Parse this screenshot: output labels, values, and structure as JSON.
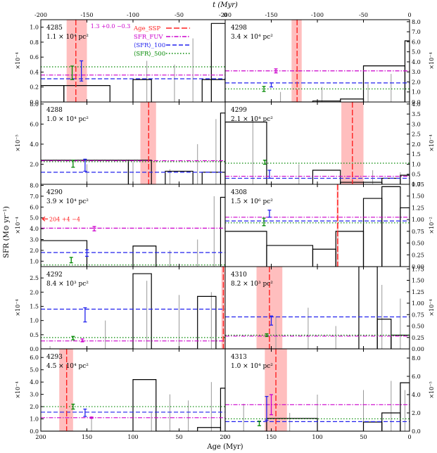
{
  "figure": {
    "top_axis_label": "t (Myr)",
    "bottom_axis_label": "Age (Myr)",
    "y_axis_label": "SFR (M⊙ yr⁻¹)",
    "top_ticks": [
      -200,
      -150,
      -100,
      -50,
      0
    ],
    "bottom_ticks": [
      200,
      150,
      100,
      50,
      0
    ],
    "colors": {
      "step": "#000000",
      "ssp": "#ff2222",
      "ssp_band": "#ffb3b3",
      "fuv": "#cc00cc",
      "sfr100": "#2222ee",
      "sfr500": "#008800",
      "hist_bars": "#999999"
    }
  },
  "legend": {
    "placement": "top of panel 4285",
    "items": [
      {
        "key": "ssp",
        "label": "Age_SSP",
        "style": "dashed-red"
      },
      {
        "key": "fuv",
        "label": "SFR_FUV",
        "style": "dashdot-magenta"
      },
      {
        "key": "sfr100",
        "label": "⟨SFR⟩_100",
        "style": "dashed-blue"
      },
      {
        "key": "sfr500",
        "label": "⟨SFR⟩_500",
        "style": "dotted-green"
      }
    ]
  },
  "chart_data": [
    {
      "type": "line",
      "id": "4285",
      "col": 0,
      "row": 0,
      "name": "4285",
      "area": "1.1 × 10⁴ pc²",
      "multiplier": "×10⁻⁴",
      "ylim": [
        0,
        1.1
      ],
      "ticks": [
        0.0,
        0.2,
        0.4,
        0.6,
        0.8,
        1.0
      ],
      "tick_labels": [
        "0.0",
        "0.2",
        "0.4",
        "0.6",
        "0.8",
        "1.0"
      ],
      "steps": [
        [
          200,
          175,
          0.22
        ],
        [
          175,
          125,
          0.22
        ],
        [
          100,
          80,
          0.3
        ],
        [
          25,
          0,
          0.3
        ],
        [
          15,
          0,
          1.05
        ]
      ],
      "bars": [
        [
          15,
          0.8
        ],
        [
          35,
          0.85
        ],
        [
          55,
          0.5
        ],
        [
          85,
          0.55
        ]
      ],
      "ssp": {
        "age": 162,
        "lo": 150,
        "hi": 172
      },
      "fuv": 0.36,
      "sfr100": 0.31,
      "sfr500": 0.47,
      "errs": [
        {
          "x": 156,
          "y": 0.4,
          "lo": 0.28,
          "hi": 0.55,
          "c": "sfr100"
        },
        {
          "x": 166,
          "y": 0.38,
          "lo": 0.3,
          "hi": 0.48,
          "c": "sfr500"
        }
      ],
      "annot": "1.3 +0.0 −0.3"
    },
    {
      "type": "line",
      "id": "4298",
      "col": 1,
      "row": 0,
      "name": "4298",
      "area": "3.4 × 10⁴ pc²",
      "multiplier": "×10⁻⁴",
      "ylim": [
        0,
        8.2
      ],
      "ticks": [
        0.0,
        1.0,
        2.0,
        3.0,
        4.0,
        5.0,
        6.0,
        7.0,
        8.0
      ],
      "tick_labels": [
        "0.0",
        "1.0",
        "2.0",
        "3.0",
        "4.0",
        "5.0",
        "6.0",
        "7.0",
        "8.0"
      ],
      "steps": [
        [
          200,
          105,
          0.0
        ],
        [
          105,
          75,
          0.1
        ],
        [
          75,
          50,
          0.3
        ],
        [
          50,
          5,
          3.6
        ],
        [
          5,
          0,
          6.1
        ]
      ],
      "bars": [
        [
          20,
          2.8
        ],
        [
          45,
          1.8
        ],
        [
          95,
          1.5
        ],
        [
          140,
          1.0
        ]
      ],
      "ssp": {
        "age": 122,
        "lo": 117,
        "hi": 128
      },
      "fuv": 3.1,
      "sfr100": 1.9,
      "sfr500": 1.3,
      "errs": [
        {
          "x": 145,
          "y": 3.1,
          "lo": 2.9,
          "hi": 3.3,
          "c": "fuv"
        },
        {
          "x": 150,
          "y": 1.7,
          "lo": 1.5,
          "hi": 1.9,
          "c": "sfr100"
        },
        {
          "x": 158,
          "y": 1.3,
          "lo": 1.05,
          "hi": 1.55,
          "c": "sfr500"
        }
      ]
    },
    {
      "type": "line",
      "id": "4288",
      "col": 0,
      "row": 1,
      "name": "4288",
      "area": "1.0 × 10⁴ pc²",
      "multiplier": "×10⁻⁵",
      "ylim": [
        0,
        8.2
      ],
      "ticks": [
        2.0,
        4.0,
        6.0,
        8.0
      ],
      "tick_labels": [
        "2.0",
        "4.0",
        "6.0",
        "8.0"
      ],
      "steps": [
        [
          200,
          105,
          2.4
        ],
        [
          105,
          80,
          2.4
        ],
        [
          65,
          35,
          1.3
        ],
        [
          25,
          0,
          1.2
        ],
        [
          5,
          0,
          7.1
        ]
      ],
      "bars": [
        [
          10,
          6.5
        ],
        [
          30,
          4.0
        ],
        [
          60,
          1.5
        ],
        [
          100,
          2.2
        ],
        [
          150,
          2.0
        ]
      ],
      "ssp": {
        "age": 83,
        "lo": 75,
        "hi": 92
      },
      "fuv": 2.35,
      "sfr100": 1.2,
      "sfr500": 2.25,
      "errs": [
        {
          "x": 152,
          "y": 1.8,
          "lo": 1.3,
          "hi": 2.5,
          "c": "sfr100"
        },
        {
          "x": 165,
          "y": 2.05,
          "lo": 1.7,
          "hi": 2.4,
          "c": "sfr500"
        }
      ]
    },
    {
      "type": "line",
      "id": "4299",
      "col": 1,
      "row": 1,
      "name": "4299",
      "area": "2.1 × 10⁴ pc²",
      "multiplier": "×10⁻⁴",
      "ylim": [
        0,
        4.1
      ],
      "ticks": [
        0.0,
        0.5,
        1.0,
        1.5,
        2.0,
        2.5,
        3.0,
        3.5,
        4.0
      ],
      "tick_labels": [
        "0.0",
        "0.5",
        "1.0",
        "1.5",
        "2.0",
        "2.5",
        "3.0",
        "3.5",
        "4.0"
      ],
      "steps": [
        [
          200,
          155,
          3.1
        ],
        [
          155,
          105,
          0.0
        ],
        [
          105,
          75,
          0.7
        ],
        [
          75,
          30,
          0.1
        ],
        [
          30,
          10,
          0.3
        ],
        [
          10,
          0,
          0.45
        ]
      ],
      "bars": [
        [
          10,
          0.6
        ],
        [
          40,
          0.7
        ],
        [
          120,
          1.0
        ],
        [
          170,
          3.3
        ]
      ],
      "ssp": {
        "age": 62,
        "lo": 50,
        "hi": 74
      },
      "fuv": 0.4,
      "sfr100": 0.3,
      "sfr500": 1.05,
      "errs": [
        {
          "x": 152,
          "y": 0.5,
          "lo": 0.3,
          "hi": 0.7,
          "c": "sfr100"
        },
        {
          "x": 157,
          "y": 1.1,
          "lo": 1.0,
          "hi": 1.2,
          "c": "sfr500"
        }
      ]
    },
    {
      "type": "line",
      "id": "4290",
      "col": 0,
      "row": 2,
      "name": "4290",
      "area": "3.9 × 10⁴ pc²",
      "multiplier": "×10⁻⁴",
      "ylim": [
        0.5,
        8.1
      ],
      "ticks": [
        1.0,
        2.0,
        3.0,
        4.0,
        5.0,
        6.0,
        7.0,
        8.0
      ],
      "tick_labels": [
        "1.0",
        "2.0",
        "3.0",
        "4.0",
        "5.0",
        "6.0",
        "7.0",
        "8.0"
      ],
      "steps": [
        [
          200,
          150,
          2.9
        ],
        [
          100,
          75,
          2.4
        ],
        [
          5,
          0,
          6.9
        ]
      ],
      "bars": [
        [
          12,
          7.0
        ],
        [
          30,
          3.0
        ],
        [
          60,
          2.0
        ],
        [
          100,
          2.2
        ]
      ],
      "ssp": null,
      "fuv": 4.05,
      "sfr100": 1.8,
      "sfr500": 0.65,
      "errs": [
        {
          "x": 150,
          "y": 1.75,
          "lo": 1.45,
          "hi": 2.05,
          "c": "sfr100"
        },
        {
          "x": 142,
          "y": 4.0,
          "lo": 3.8,
          "hi": 4.2,
          "c": "fuv"
        },
        {
          "x": 167,
          "y": 1.1,
          "lo": 0.85,
          "hi": 1.35,
          "c": "sfr500"
        }
      ],
      "annot": "204 +4 −4"
    },
    {
      "type": "line",
      "id": "4308",
      "col": 1,
      "row": 2,
      "name": "4308",
      "area": "1.5 × 10⁶ pc²",
      "multiplier": "×10⁻²",
      "ylim": [
        0,
        1.75
      ],
      "ticks": [
        0.0,
        0.25,
        0.5,
        0.75,
        1.0,
        1.25,
        1.5,
        1.75
      ],
      "tick_labels": [
        "0.00",
        "0.25",
        "0.50",
        "0.75",
        "1.00",
        "1.25",
        "1.50",
        "1.75"
      ],
      "steps": [
        [
          200,
          155,
          0.75
        ],
        [
          155,
          105,
          0.45
        ],
        [
          105,
          80,
          0.37
        ],
        [
          80,
          50,
          0.75
        ],
        [
          50,
          30,
          1.45
        ],
        [
          30,
          10,
          1.7
        ],
        [
          10,
          0,
          1.25
        ]
      ],
      "bars": [],
      "ssp": {
        "age": 78,
        "lo": 77,
        "hi": 79
      },
      "fuv": 1.05,
      "sfr100": 0.97,
      "sfr500": 0.93,
      "errs": [
        {
          "x": 152,
          "y": 1.12,
          "lo": 1.05,
          "hi": 1.2,
          "c": "sfr100"
        },
        {
          "x": 158,
          "y": 0.95,
          "lo": 0.87,
          "hi": 1.03,
          "c": "sfr500"
        }
      ]
    },
    {
      "type": "line",
      "id": "4292",
      "col": 0,
      "row": 3,
      "name": "4292",
      "area": "8.4 × 10³ pc²",
      "multiplier": "×10⁻⁴",
      "ylim": [
        0,
        2.9
      ],
      "ticks": [
        0.0,
        0.5,
        1.0,
        1.5,
        2.0,
        2.5
      ],
      "tick_labels": [
        "0.0",
        "0.5",
        "1.0",
        "1.5",
        "2.0",
        "2.5"
      ],
      "steps": [
        [
          200,
          100,
          0.0
        ],
        [
          100,
          80,
          2.65
        ],
        [
          80,
          30,
          0.0
        ],
        [
          30,
          10,
          1.85
        ],
        [
          10,
          0,
          0.0
        ]
      ],
      "bars": [
        [
          15,
          2.0
        ],
        [
          50,
          1.9
        ],
        [
          85,
          2.4
        ],
        [
          130,
          1.0
        ],
        [
          190,
          0.1
        ]
      ],
      "ssp": {
        "age": 2,
        "lo": 0,
        "hi": 4
      },
      "fuv": 0.28,
      "sfr100": 1.4,
      "sfr500": 0.4,
      "errs": [
        {
          "x": 152,
          "y": 1.2,
          "lo": 0.95,
          "hi": 1.45,
          "c": "sfr100"
        },
        {
          "x": 155,
          "y": 0.3,
          "lo": 0.25,
          "hi": 0.35,
          "c": "fuv"
        },
        {
          "x": 165,
          "y": 0.38,
          "lo": 0.32,
          "hi": 0.44,
          "c": "sfr500"
        }
      ]
    },
    {
      "type": "line",
      "id": "4310",
      "col": 1,
      "row": 3,
      "name": "4310",
      "area": "8.2 × 10³ pc²",
      "multiplier": "×10⁻⁴",
      "ylim": [
        0,
        1.8
      ],
      "ticks": [
        0.0,
        0.25,
        0.5,
        0.75,
        1.0,
        1.25,
        1.5,
        1.75
      ],
      "tick_labels": [
        "0.00",
        "0.25",
        "0.50",
        "0.75",
        "1.00",
        "1.25",
        "1.50",
        "1.75"
      ],
      "steps": [
        [
          200,
          55,
          0.0
        ],
        [
          55,
          35,
          1.8
        ],
        [
          35,
          20,
          0.65
        ],
        [
          20,
          0,
          0.3
        ]
      ],
      "bars": [
        [
          10,
          1.1
        ],
        [
          30,
          1.4
        ],
        [
          80,
          0.5
        ],
        [
          110,
          0.9
        ],
        [
          145,
          0.7
        ]
      ],
      "ssp": {
        "age": 152,
        "lo": 138,
        "hi": 166
      },
      "fuv": 0.28,
      "sfr100": 0.7,
      "sfr500": 0.3,
      "errs": [
        {
          "x": 150,
          "y": 0.6,
          "lo": 0.52,
          "hi": 0.72,
          "c": "sfr100"
        },
        {
          "x": 155,
          "y": 0.3,
          "lo": 0.27,
          "hi": 0.33,
          "c": "sfr500"
        }
      ]
    },
    {
      "type": "line",
      "id": "4293",
      "col": 0,
      "row": 4,
      "name": "4293",
      "area": "4.5 × 10⁴ pc²",
      "multiplier": "×10⁻⁴",
      "ylim": [
        0,
        6.7
      ],
      "ticks": [
        0.0,
        1.0,
        2.0,
        3.0,
        4.0,
        5.0,
        6.0
      ],
      "tick_labels": [
        "0.0",
        "1.0",
        "2.0",
        "3.0",
        "4.0",
        "5.0",
        "6.0"
      ],
      "steps": [
        [
          200,
          100,
          0.0
        ],
        [
          100,
          75,
          4.2
        ],
        [
          75,
          30,
          0.0
        ],
        [
          30,
          5,
          0.3
        ],
        [
          5,
          0,
          3.5
        ]
      ],
      "bars": [
        [
          15,
          4.0
        ],
        [
          40,
          2.5
        ],
        [
          60,
          3.0
        ],
        [
          80,
          1.5
        ],
        [
          145,
          1.2
        ]
      ],
      "ssp": {
        "age": 172,
        "lo": 165,
        "hi": 180
      },
      "fuv": 1.1,
      "sfr100": 1.55,
      "sfr500": 2.0,
      "errs": [
        {
          "x": 152,
          "y": 1.5,
          "lo": 1.2,
          "hi": 1.8,
          "c": "sfr100"
        },
        {
          "x": 165,
          "y": 2.0,
          "lo": 1.8,
          "hi": 2.2,
          "c": "sfr500"
        },
        {
          "x": 145,
          "y": 1.1,
          "lo": 1.05,
          "hi": 1.15,
          "c": "fuv"
        }
      ]
    },
    {
      "type": "line",
      "id": "4313",
      "col": 1,
      "row": 4,
      "name": "4313",
      "area": "1.0 × 10⁴ pc²",
      "multiplier": "×10⁻⁵",
      "ylim": [
        0,
        9.0
      ],
      "ticks": [
        0.0,
        2.0,
        4.0,
        6.0,
        8.0
      ],
      "tick_labels": [
        "0.0",
        "2.0",
        "4.0",
        "6.0",
        "8.0"
      ],
      "steps": [
        [
          200,
          155,
          0.0
        ],
        [
          155,
          100,
          1.4
        ],
        [
          100,
          50,
          0.0
        ],
        [
          50,
          30,
          1.0
        ],
        [
          30,
          10,
          2.0
        ],
        [
          10,
          0,
          5.3
        ]
      ],
      "bars": [
        [
          5,
          4.5
        ],
        [
          20,
          5.5
        ],
        [
          50,
          4.5
        ],
        [
          100,
          4.0
        ],
        [
          130,
          2.0
        ],
        [
          180,
          3.0
        ]
      ],
      "ssp": {
        "age": 145,
        "lo": 133,
        "hi": 157
      },
      "fuv": 2.9,
      "sfr100": 1.05,
      "sfr500": 1.35,
      "errs": [
        {
          "x": 155,
          "y": 2.5,
          "lo": 1.2,
          "hi": 3.8,
          "c": "sfr100"
        },
        {
          "x": 150,
          "y": 3.0,
          "lo": 1.8,
          "hi": 4.0,
          "c": "fuv"
        },
        {
          "x": 163,
          "y": 0.9,
          "lo": 0.6,
          "hi": 1.1,
          "c": "sfr500"
        }
      ]
    }
  ]
}
